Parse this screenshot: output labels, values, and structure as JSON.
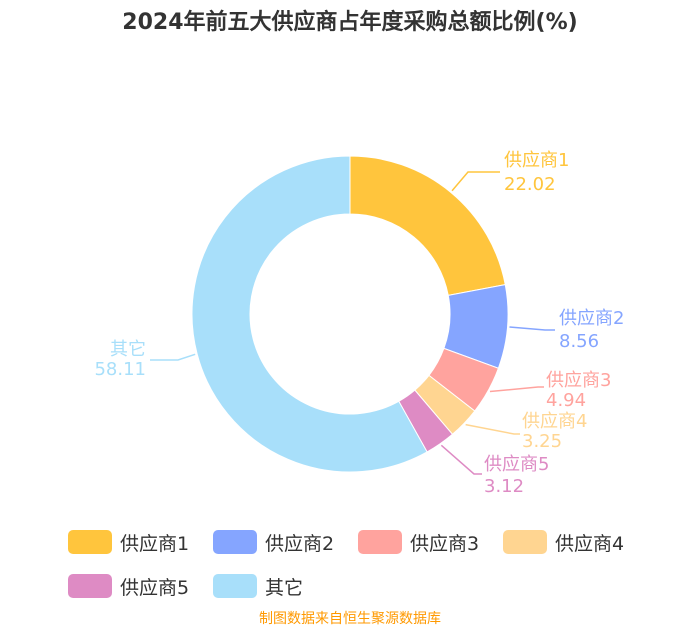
{
  "chart_data": {
    "type": "pie",
    "variant": "donut",
    "title": "2024年前五大供应商占年度采购总额比例(%)",
    "slices": [
      {
        "label": "供应商1",
        "value": 22.02,
        "color": "#ffc53d"
      },
      {
        "label": "供应商2",
        "value": 8.56,
        "color": "#85a5ff"
      },
      {
        "label": "供应商3",
        "value": 4.94,
        "color": "#ffa39e"
      },
      {
        "label": "供应商4",
        "value": 3.25,
        "color": "#ffd591"
      },
      {
        "label": "供应商5",
        "value": 3.12,
        "color": "#de8bc4"
      },
      {
        "label": "其它",
        "value": 58.11,
        "color": "#a8dffa"
      }
    ],
    "legend_position": "bottom"
  },
  "source": "制图数据来自恒生聚源数据库"
}
